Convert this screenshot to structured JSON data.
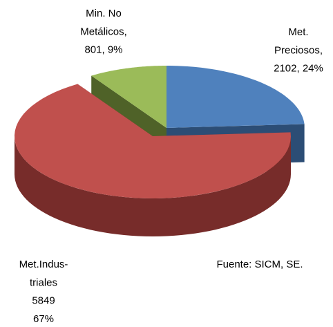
{
  "chart_data": {
    "type": "pie3d",
    "values": [
      2102,
      5849,
      801
    ],
    "value_labels": [
      [
        "Met.",
        "Preciosos,",
        "2102, 24%"
      ],
      [
        "Met.Indus-",
        "triales",
        "5849",
        "67%"
      ],
      [
        "Min. No",
        "Metálicos,",
        "801, 9%"
      ]
    ],
    "colors": [
      "#4f81bd",
      "#c0504d",
      "#9bbb59"
    ],
    "side_colors": [
      "#2c4d75",
      "#772c2a",
      "#4f6228"
    ],
    "annotation": "Fuente: SICM, SE."
  }
}
